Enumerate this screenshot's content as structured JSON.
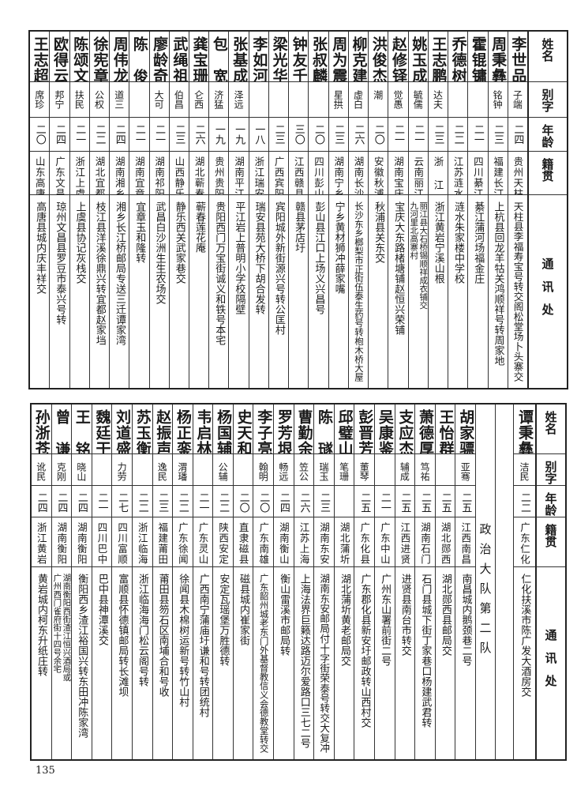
{
  "headers": {
    "name": "姓名",
    "alias": "别字",
    "age": "年龄",
    "native": "籍贯",
    "address": "通讯处"
  },
  "top_table": {
    "persons": [
      {
        "name": "李世品",
        "alias": "子端",
        "age": "二四",
        "native": "贵州天柱",
        "address": [
          "天柱县李福寿宝号转交阁松堂场卜头寨交"
        ]
      },
      {
        "name": "周秉彝",
        "alias": "铭钟",
        "age": "二三",
        "native": "福建长汀",
        "address": [
          "上杭县回龙羊牯关鸿顺祥号转周家地"
        ]
      },
      {
        "name": "霍锟镛",
        "alias": "",
        "age": "二一",
        "native": "四川綦江",
        "address": [
          "綦江蒲河场福金庄"
        ]
      },
      {
        "name": "乔德树",
        "alias": "",
        "age": "二二",
        "native": "江苏涟水",
        "address": [
          "涟水朱家楼中学校"
        ]
      },
      {
        "name": "王志鹏",
        "alias": "达夫",
        "age": "二三",
        "native": "浙  江",
        "address": [
          "浙江黄岩宁溪山根"
        ]
      },
      {
        "name": "姚玉成",
        "alias": "毓儒",
        "age": "二一",
        "native": "云南丽江",
        "address": [
          "丽江县大石桥锡顺祥成衣铺交",
          "九河里北高寨村"
        ]
      },
      {
        "name": "赵修铎",
        "alias": "觉愚",
        "age": "二一",
        "native": "湖南宝庆",
        "address": [
          "宝庆大东路楮塘铺赵恒兴荣铺"
        ]
      },
      {
        "name": "洪俊杰",
        "alias": "潮",
        "age": "二〇",
        "native": "安徽秋浦",
        "address": [
          "秋浦县关东交"
        ]
      },
      {
        "name": "柳克建",
        "alias": "虚白",
        "age": "二六",
        "native": "湖南长沙",
        "address": [
          "长沙东乡榔梨市正街伍泰生药号转枹木桥大屋"
        ]
      },
      {
        "name": "周为震",
        "alias": "星拱",
        "age": "二三",
        "native": "湖南宁乡",
        "address": [
          "宁乡黄材狮冲薛家嘴"
        ]
      },
      {
        "name": "张叔麟",
        "alias": "",
        "age": "二〇",
        "native": "四川彭山",
        "address": [
          "彭山县江口上场义兴昌号"
        ]
      },
      {
        "name": "钟友千",
        "alias": "",
        "age": "三〇",
        "native": "江西赣县",
        "address": [
          "赣县茅店圩"
        ]
      },
      {
        "name": "梁光华",
        "alias": "",
        "age": "二三",
        "native": "广西宾阳",
        "address": [
          "宾阳城外新街源兴号转公匡村"
        ]
      },
      {
        "name": "李如河",
        "alias": "",
        "age": "一八",
        "native": "浙江瑞安",
        "address": [
          "瑞安县苑大桥下胡合发转"
        ]
      },
      {
        "name": "张基成",
        "alias": "泽远",
        "age": "一九",
        "native": "湖南平江",
        "address": [
          "平江岩上普明小学校隔壁"
        ]
      },
      {
        "name": "包  宽",
        "alias": "济猛",
        "age": "一九",
        "native": "贵州贵阳",
        "address": [
          "贵阳西门万宝街诚义和铁号本宅"
        ]
      },
      {
        "name": "龚宝珊",
        "alias": "仑西",
        "age": "二六",
        "native": "湖北蕲春",
        "address": [
          "蕲春莲花庵"
        ]
      },
      {
        "name": "武绳祖",
        "alias": "伯昌",
        "age": "二三",
        "native": "山西静乐",
        "address": [
          "静乐西关武家巷交"
        ]
      },
      {
        "name": "廖龄奇",
        "alias": "大可",
        "age": "二一",
        "native": "湖南祁阳",
        "address": [
          "武昌白沙洲生生农场交"
        ]
      },
      {
        "name": "陈  俊",
        "alias": "",
        "age": "二一",
        "native": "湖南宜章",
        "address": [
          "宜章玉和隆转"
        ]
      },
      {
        "name": "周伟龙",
        "alias": "道三",
        "age": "二四",
        "native": "湖南湘乡",
        "address": [
          "湘乡长江桥邮局专送三迁谭家湾"
        ]
      },
      {
        "name": "徐宪章",
        "alias": "公权",
        "age": "二二",
        "native": "湖北宜都",
        "address": [
          "枝江县洋溪徐鼎兴转宜都赵家垱"
        ]
      },
      {
        "name": "陈颂文",
        "alias": "扶民",
        "age": "二一",
        "native": "浙江上虞",
        "address": [
          "上虞县协记灰栈交"
        ]
      },
      {
        "name": "欧得云",
        "alias": "邦宁",
        "age": "二四",
        "native": "广东文昌",
        "address": [
          "琼州文昌县罗豆市泰兴号转"
        ]
      },
      {
        "name": "王志超",
        "alias": "席珍",
        "age": "二〇",
        "native": "山东高唐",
        "address": [
          "高唐县城内庆丰祥交"
        ]
      }
    ]
  },
  "bottom_table": {
    "first_person": {
      "name": "谭秉彝",
      "alias": "洁民",
      "age": "二二",
      "native": "广东仁化",
      "address": [
        "仁化扶溪市陈广发大酒房交"
      ]
    },
    "team_label": "政治大队第二队",
    "persons": [
      {
        "name": "胡家骠",
        "alias": "亚骞",
        "age": "二五",
        "native": "江西南昌",
        "address": [
          "南昌城内鹅颈巷二号"
        ]
      },
      {
        "name": "王怡群",
        "alias": "",
        "age": "二五",
        "native": "湖北郧西",
        "address": [
          "湖北郧西县邮局交"
        ]
      },
      {
        "name": "萧德厚",
        "alias": "笃祐",
        "age": "二五",
        "native": "湖南石门",
        "address": [
          "石门县城下街丁家巷口杨建武君转"
        ]
      },
      {
        "name": "支应杰",
        "alias": "辅成",
        "age": "二五",
        "native": "江西进贤",
        "address": [
          "进贤县南台市转交"
        ]
      },
      {
        "name": "吴康鉴",
        "alias": "",
        "age": "二一",
        "native": "广东中山",
        "address": [
          "广州东山署前街二号"
        ]
      },
      {
        "name": "彭晋芳",
        "alias": "董琴",
        "age": "二五",
        "native": "广东化县",
        "address": [
          "广东郡化县新安圩邮政转山西村交"
        ]
      },
      {
        "name": "邱璧山",
        "alias": "笔珊",
        "age": "",
        "native": "湖北蒲圻",
        "address": [
          "湖北蒲圻黄老邮局交"
        ]
      },
      {
        "name": "陈  璲",
        "alias": "瑞玉",
        "age": "二三",
        "native": "湖南东安",
        "address": [
          "湖南东安邮局付十字街荣泰号转交大复冲"
        ]
      },
      {
        "name": "曹勤余",
        "alias": "笠公",
        "age": "二六",
        "native": "江苏上海",
        "address": [
          "上海法界巨籁达路迈尔爱路口三七二号"
        ]
      },
      {
        "name": "罗芳垠",
        "alias": "畅远",
        "age": "二四",
        "native": "湖南衡山",
        "address": [
          "衡山雷溪市邮局转"
        ]
      },
      {
        "name": "李子亮",
        "alias": "翰明",
        "age": "二〇",
        "native": "广东南雄",
        "address": [
          "广东韶州城老东门外基督教信义会德教堂转交"
        ]
      },
      {
        "name": "史天和",
        "alias": "",
        "age": "二〇",
        "native": "直隶磁县",
        "address": [
          "磁县城内崔家街"
        ]
      },
      {
        "name": "杨国辅",
        "alias": "公辅",
        "age": "二二",
        "native": "陕西安定",
        "address": [
          "安定瓦瑶堡万胜德转"
        ]
      },
      {
        "name": "韦启林",
        "alias": "",
        "age": "二一",
        "native": "广东灵山",
        "address": [
          "广西南宁蒲庙圩谦和号转团统村"
        ]
      },
      {
        "name": "杨正銮",
        "alias": "渭璠",
        "age": "二二",
        "native": "广东徐闻",
        "address": [
          "徐闻县木棉树运新号转竹山村"
        ]
      },
      {
        "name": "赵振声",
        "alias": "逸民",
        "age": "二三",
        "native": "福建莆田",
        "address": [
          "莆田县笏石区南埔合和号收"
        ]
      },
      {
        "name": "苏玉衡",
        "alias": "",
        "age": "二二",
        "native": "浙江临海",
        "address": [
          "浙江临海海门松云阁号转"
        ]
      },
      {
        "name": "刘道盛",
        "alias": "力劳",
        "age": "二七",
        "native": "四川富顺",
        "address": [
          "富顺县怀德镇邮局转长滩坝"
        ]
      },
      {
        "name": "魏廷干",
        "alias": "",
        "age": "二一",
        "native": "四川巴中",
        "address": [
          "巴中县神潭溪交"
        ]
      },
      {
        "name": "王  铭",
        "alias": "晓山",
        "age": "二四",
        "native": "湖南衡阳",
        "address": [
          "衡阳西乡渣江裕国兴转东田冲陈家湾"
        ]
      },
      {
        "name": "曾  谦",
        "alias": "克刚",
        "age": "二四",
        "native": "湖南衡阳",
        "address": [
          "湖南衡阳西街渣江恒兴酒局或",
          "广州西门雀府街十四号余宅"
        ]
      },
      {
        "name": "孙浙苍",
        "alias": "讹民",
        "age": "二四",
        "native": "浙江黄岩",
        "address": [
          "黄岩城内柯东升纸庄转"
        ]
      }
    ]
  },
  "page_number": "135"
}
